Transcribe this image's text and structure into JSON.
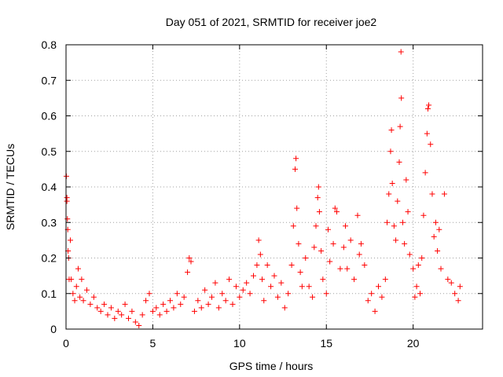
{
  "chart_data": {
    "type": "scatter",
    "title": "Day 051 of 2021, SRMTID for receiver joe2",
    "xlabel": "GPS time / hours",
    "ylabel": "SRMTID / TECUs",
    "xlim": [
      0,
      24
    ],
    "ylim": [
      0,
      0.8
    ],
    "x_ticks": [
      0,
      5,
      10,
      15,
      20
    ],
    "x_tick_labels": [
      "0",
      "5",
      "10",
      "15",
      "20"
    ],
    "y_ticks": [
      0,
      0.1,
      0.2,
      0.3,
      0.4,
      0.5,
      0.6,
      0.7,
      0.8
    ],
    "y_tick_labels": [
      "0",
      "0.1",
      "0.2",
      "0.3",
      "0.4",
      "0.5",
      "0.6",
      "0.7",
      "0.8"
    ],
    "grid": true,
    "marker": "plus",
    "series": [
      {
        "name": "joe2",
        "color": "#ff0000",
        "points": [
          [
            0.02,
            0.43
          ],
          [
            0.05,
            0.37
          ],
          [
            0.05,
            0.36
          ],
          [
            0.08,
            0.31
          ],
          [
            0.1,
            0.28
          ],
          [
            0.12,
            0.22
          ],
          [
            0.15,
            0.2
          ],
          [
            0.18,
            0.14
          ],
          [
            0.25,
            0.25
          ],
          [
            0.3,
            0.14
          ],
          [
            0.4,
            0.1
          ],
          [
            0.5,
            0.08
          ],
          [
            0.6,
            0.12
          ],
          [
            0.7,
            0.17
          ],
          [
            0.8,
            0.09
          ],
          [
            0.9,
            0.14
          ],
          [
            1.0,
            0.08
          ],
          [
            1.2,
            0.11
          ],
          [
            1.4,
            0.07
          ],
          [
            1.6,
            0.09
          ],
          [
            1.8,
            0.06
          ],
          [
            2.0,
            0.05
          ],
          [
            2.2,
            0.07
          ],
          [
            2.4,
            0.04
          ],
          [
            2.6,
            0.06
          ],
          [
            2.8,
            0.03
          ],
          [
            3.0,
            0.05
          ],
          [
            3.2,
            0.04
          ],
          [
            3.4,
            0.07
          ],
          [
            3.6,
            0.03
          ],
          [
            3.8,
            0.05
          ],
          [
            4.0,
            0.02
          ],
          [
            4.2,
            0.01
          ],
          [
            4.4,
            0.04
          ],
          [
            4.6,
            0.08
          ],
          [
            4.8,
            0.1
          ],
          [
            5.0,
            0.05
          ],
          [
            5.2,
            0.06
          ],
          [
            5.4,
            0.04
          ],
          [
            5.6,
            0.07
          ],
          [
            5.8,
            0.05
          ],
          [
            6.0,
            0.08
          ],
          [
            6.2,
            0.06
          ],
          [
            6.4,
            0.1
          ],
          [
            6.6,
            0.07
          ],
          [
            6.8,
            0.09
          ],
          [
            7.0,
            0.16
          ],
          [
            7.1,
            0.2
          ],
          [
            7.2,
            0.19
          ],
          [
            7.4,
            0.05
          ],
          [
            7.6,
            0.08
          ],
          [
            7.8,
            0.06
          ],
          [
            8.0,
            0.11
          ],
          [
            8.2,
            0.07
          ],
          [
            8.4,
            0.09
          ],
          [
            8.6,
            0.13
          ],
          [
            8.8,
            0.06
          ],
          [
            9.0,
            0.1
          ],
          [
            9.2,
            0.08
          ],
          [
            9.4,
            0.14
          ],
          [
            9.6,
            0.07
          ],
          [
            9.8,
            0.12
          ],
          [
            10.0,
            0.09
          ],
          [
            10.2,
            0.11
          ],
          [
            10.4,
            0.13
          ],
          [
            10.6,
            0.1
          ],
          [
            10.8,
            0.15
          ],
          [
            11.0,
            0.18
          ],
          [
            11.1,
            0.25
          ],
          [
            11.2,
            0.21
          ],
          [
            11.3,
            0.14
          ],
          [
            11.4,
            0.08
          ],
          [
            11.6,
            0.18
          ],
          [
            11.8,
            0.12
          ],
          [
            12.0,
            0.15
          ],
          [
            12.2,
            0.09
          ],
          [
            12.4,
            0.13
          ],
          [
            12.6,
            0.06
          ],
          [
            12.8,
            0.1
          ],
          [
            13.0,
            0.18
          ],
          [
            13.1,
            0.29
          ],
          [
            13.2,
            0.45
          ],
          [
            13.25,
            0.48
          ],
          [
            13.3,
            0.34
          ],
          [
            13.4,
            0.24
          ],
          [
            13.5,
            0.16
          ],
          [
            13.6,
            0.12
          ],
          [
            13.8,
            0.2
          ],
          [
            14.0,
            0.12
          ],
          [
            14.2,
            0.09
          ],
          [
            14.3,
            0.23
          ],
          [
            14.4,
            0.29
          ],
          [
            14.5,
            0.37
          ],
          [
            14.55,
            0.4
          ],
          [
            14.6,
            0.33
          ],
          [
            14.7,
            0.22
          ],
          [
            14.8,
            0.14
          ],
          [
            15.0,
            0.1
          ],
          [
            15.1,
            0.28
          ],
          [
            15.2,
            0.19
          ],
          [
            15.4,
            0.24
          ],
          [
            15.5,
            0.34
          ],
          [
            15.6,
            0.33
          ],
          [
            15.8,
            0.17
          ],
          [
            16.0,
            0.23
          ],
          [
            16.1,
            0.29
          ],
          [
            16.2,
            0.17
          ],
          [
            16.4,
            0.25
          ],
          [
            16.6,
            0.14
          ],
          [
            16.8,
            0.32
          ],
          [
            16.9,
            0.21
          ],
          [
            17.0,
            0.24
          ],
          [
            17.2,
            0.18
          ],
          [
            17.4,
            0.08
          ],
          [
            17.6,
            0.1
          ],
          [
            17.8,
            0.05
          ],
          [
            18.0,
            0.12
          ],
          [
            18.2,
            0.09
          ],
          [
            18.4,
            0.14
          ],
          [
            18.5,
            0.3
          ],
          [
            18.6,
            0.38
          ],
          [
            18.7,
            0.5
          ],
          [
            18.75,
            0.56
          ],
          [
            18.8,
            0.41
          ],
          [
            18.9,
            0.29
          ],
          [
            19.0,
            0.25
          ],
          [
            19.1,
            0.36
          ],
          [
            19.2,
            0.47
          ],
          [
            19.25,
            0.57
          ],
          [
            19.3,
            0.78
          ],
          [
            19.32,
            0.65
          ],
          [
            19.4,
            0.3
          ],
          [
            19.5,
            0.24
          ],
          [
            19.6,
            0.42
          ],
          [
            19.7,
            0.33
          ],
          [
            19.8,
            0.21
          ],
          [
            20.0,
            0.17
          ],
          [
            20.1,
            0.09
          ],
          [
            20.2,
            0.12
          ],
          [
            20.3,
            0.18
          ],
          [
            20.4,
            0.1
          ],
          [
            20.5,
            0.2
          ],
          [
            20.6,
            0.32
          ],
          [
            20.7,
            0.44
          ],
          [
            20.8,
            0.55
          ],
          [
            20.85,
            0.62
          ],
          [
            20.9,
            0.63
          ],
          [
            21.0,
            0.52
          ],
          [
            21.1,
            0.38
          ],
          [
            21.2,
            0.26
          ],
          [
            21.3,
            0.3
          ],
          [
            21.4,
            0.22
          ],
          [
            21.5,
            0.28
          ],
          [
            21.6,
            0.17
          ],
          [
            21.8,
            0.38
          ],
          [
            22.0,
            0.14
          ],
          [
            22.2,
            0.13
          ],
          [
            22.4,
            0.1
          ],
          [
            22.6,
            0.08
          ],
          [
            22.7,
            0.12
          ]
        ]
      }
    ]
  }
}
